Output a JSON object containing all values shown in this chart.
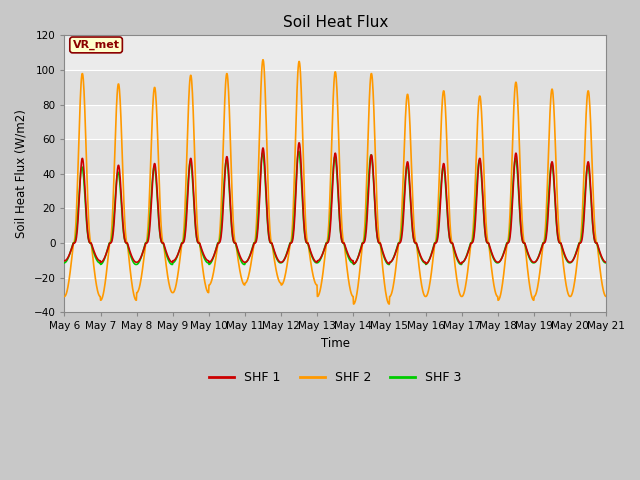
{
  "title": "Soil Heat Flux",
  "ylabel": "Soil Heat Flux (W/m2)",
  "xlabel": "Time",
  "ylim": [
    -40,
    120
  ],
  "yticks": [
    -40,
    -20,
    0,
    20,
    40,
    60,
    80,
    100,
    120
  ],
  "xtick_labels": [
    "May 6",
    "May 7",
    "May 8",
    "May 9",
    "May 10",
    "May 11",
    "May 12",
    "May 13",
    "May 14",
    "May 15",
    "May 16",
    "May 17",
    "May 18",
    "May 19",
    "May 20",
    "May 21"
  ],
  "colors": {
    "SHF 1": "#cc0000",
    "SHF 2": "#ff9900",
    "SHF 3": "#00cc00"
  },
  "legend_label": "VR_met",
  "fig_facecolor": "#c8c8c8",
  "axes_facecolor": "#e8e8e8",
  "grid_color": "#ffffff",
  "linewidth": 1.2,
  "days": 15,
  "shf1_amps": [
    49,
    45,
    46,
    49,
    50,
    55,
    58,
    52,
    51,
    47,
    46,
    49,
    52,
    47,
    47
  ],
  "shf1_troughs": [
    -12,
    -13,
    -13,
    -12,
    -13,
    -13,
    -13,
    -12,
    -14,
    -13,
    -14,
    -13,
    -13,
    -13,
    -13
  ],
  "shf2_amps": [
    98,
    92,
    90,
    97,
    98,
    106,
    105,
    99,
    98,
    86,
    88,
    85,
    93,
    89,
    88
  ],
  "shf2_troughs": [
    -28,
    -30,
    -26,
    -26,
    -22,
    -21,
    -22,
    -28,
    -32,
    -28,
    -28,
    -28,
    -30,
    -28,
    -28
  ],
  "shf3_amps": [
    44,
    41,
    44,
    47,
    48,
    52,
    53,
    50,
    51,
    45,
    44,
    48,
    49,
    46,
    45
  ],
  "shf3_troughs": [
    -12,
    -13,
    -13,
    -12,
    -13,
    -12,
    -12,
    -12,
    -13,
    -12,
    -13,
    -12,
    -12,
    -12,
    -12
  ]
}
